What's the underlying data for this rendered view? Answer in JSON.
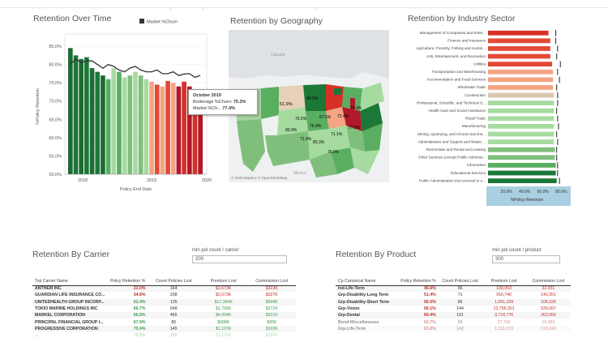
{
  "panels": {
    "retention_over_time": "Retention Over Time",
    "retention_by_geography": "Retention by Geography",
    "retention_by_industry": "Retention by Industry Sector",
    "retention_by_carrier": "Retention By Carrier",
    "retention_by_product": "Retention By Product"
  },
  "colors": {
    "dark_green": "#1e6b34",
    "green": "#58a860",
    "light_green": "#a4d29a",
    "salmon": "#f4a582",
    "red": "#e34a33",
    "dark_red": "#b2182b",
    "tan": "#d8c8b0",
    "axis_blue": "#a9cfe0"
  },
  "chart_data": [
    {
      "type": "bar",
      "title": "Retention Over Time",
      "legend": "Market %Churn",
      "legend_position": "top-right",
      "ylabel": "%Policy Retention",
      "xlabel": "Policy End Date",
      "ylim": [
        50,
        87
      ],
      "y_ticks": [
        "85.0%",
        "80.0%",
        "75.0%",
        "70.0%",
        "65.0%",
        "60.0%",
        "55.0%",
        "50.0%"
      ],
      "x_ticks": [
        "2018",
        "2019",
        "2020"
      ],
      "values": [
        84.5,
        82.5,
        81.5,
        82,
        79,
        78,
        77,
        76,
        79,
        78,
        76.5,
        77,
        78,
        77,
        76,
        75.3,
        74.5,
        74,
        75.5,
        75,
        74,
        75.3,
        74,
        72,
        73
      ],
      "market_churn": [
        80,
        81.5,
        80.5,
        81,
        81,
        80,
        79,
        80,
        79.5,
        78.5,
        78,
        79,
        79.5,
        78.5,
        78,
        78,
        78.5,
        77.5,
        77.5,
        78,
        77,
        77.4,
        77.5,
        76.5,
        77
      ],
      "tooltip": {
        "date": "October 2019",
        "line1_label": "Brokerage %Churn:",
        "line1_value": "75.3%",
        "line2_label": "Market %Ch...",
        "line2_value": "77.4%"
      }
    },
    {
      "type": "bar",
      "title": "Retention by Industry Sector",
      "xlabel": "%Policy Retention",
      "x_ticks": [
        "20.0%",
        "40.0%",
        "60.0%",
        "80.0%"
      ],
      "categories": [
        "Management of Companies and Enter...",
        "Finance and Insurance",
        "Agriculture, Forestry, Fishing and Huntin...",
        "Arts, Entertainment, and Recreation",
        "Utilities",
        "Transportation and Warehousing",
        "Accommodation and Food Services",
        "Wholesale Trade",
        "Construction",
        "Professional, Scientific, and Technical S...",
        "Health Care and Social Assistance",
        "Retail Trade",
        "Manufacturing",
        "Mining, Quarrying, and Oil and Gas Ext...",
        "Administrative and Support and Waste ...",
        "Real Estate and Rental and Leasing",
        "Other Services (except Public Administ...",
        "Information",
        "Educational Services",
        "Public Administration (not covered in e..."
      ],
      "values": [
        66,
        68,
        68,
        68,
        70,
        71,
        71,
        71,
        72,
        72,
        72,
        72,
        72,
        72,
        72,
        73,
        73,
        74,
        74,
        75
      ],
      "reference": [
        74,
        74,
        76,
        75,
        79,
        76,
        78,
        75,
        76,
        76,
        75,
        76,
        77,
        75,
        76,
        75,
        75,
        76,
        76,
        78
      ]
    }
  ],
  "map": {
    "attribution": "© 2020 Mapbox © OpenStreetMap",
    "labels": [
      "Canada",
      "Mexico"
    ],
    "state_values": [
      "71.9%",
      "75.3%",
      "61.9%",
      "80.5%",
      "67.5%",
      "76.5%",
      "76.4%",
      "72.4%",
      "80.9%",
      "71.1%",
      "80.3%",
      "75.9%",
      "77.8%"
    ]
  },
  "carrier": {
    "input_label": "min pol count / carrier",
    "input_value": "200",
    "columns": [
      "Top Carrier Name",
      "Policy Retention %",
      "Count Policies Lost",
      "Premium Lost",
      "Commission Lost"
    ],
    "rows": [
      {
        "name": "ANTHEM INC",
        "pct": "23.0%",
        "count": "164",
        "premium": "$3,673K",
        "commission": "$323K",
        "color": "red"
      },
      {
        "name": "GUARDIAN LIFE INSURANCE CO...",
        "pct": "34.8%",
        "count": "208",
        "premium": "$3,673K",
        "commission": "$327K",
        "color": "red"
      },
      {
        "name": "UNITEDHEALTH GROUP INCORP...",
        "pct": "63.4%",
        "count": "135",
        "premium": "$17,364K",
        "commission": "$694K",
        "color": "green"
      },
      {
        "name": "TOKIO MARINE HOLDINGS INC",
        "pct": "66.7%",
        "count": "548",
        "premium": "$1,765K",
        "commission": "$271K",
        "color": "green"
      },
      {
        "name": "MARKEL CORPORATION",
        "pct": "66.8%",
        "count": "465",
        "premium": "$4,094K",
        "commission": "$621K",
        "color": "green"
      },
      {
        "name": "PRINCIPAL FINANCIAL GROUP I...",
        "pct": "67.9%",
        "count": "86",
        "premium": "$688K",
        "commission": "$95K",
        "color": "green"
      },
      {
        "name": "PROGRESSIVE CORPORATION",
        "pct": "70.4%",
        "count": "145",
        "premium": "$1,107K",
        "commission": "$102K",
        "color": "green"
      },
      {
        "name": "...",
        "pct": "70.5%",
        "count": "150",
        "premium": "$1,120K",
        "commission": "$188K",
        "color": "green"
      }
    ]
  },
  "product": {
    "input_label": "min pol count / product",
    "input_value": "300",
    "columns": [
      "Cp Canonical Name",
      "Policy Retention %",
      "Count Policies Lost",
      "Premium Lost",
      "Commission Lost"
    ],
    "rows": [
      {
        "name": "Ind-Life-Term",
        "pct": "45.6%",
        "count": "56",
        "premium": "100,053",
        "commission": "32,031",
        "color": "red"
      },
      {
        "name": "Grp-Disability-Long Term",
        "pct": "51.4%",
        "count": "71",
        "premium": "916,740",
        "commission": "140,351",
        "color": "red"
      },
      {
        "name": "Grp-Disability-Short Term",
        "pct": "56.0%",
        "count": "86",
        "premium": "1,051,109",
        "commission": "108,326",
        "color": "red"
      },
      {
        "name": "Grp-Vision",
        "pct": "56.1%",
        "count": "144",
        "premium": "12,756,301",
        "commission": "539,667",
        "color": "red"
      },
      {
        "name": "Grp-Dental",
        "pct": "60.4%",
        "count": "191",
        "premium": "3,716,776",
        "commission": "263,959",
        "color": "red"
      },
      {
        "name": "Bond-Miscellaneous",
        "pct": "62.7%",
        "count": "59",
        "premium": "37,793",
        "commission": "10,452",
        "color": "red"
      },
      {
        "name": "Grp-Life-Term",
        "pct": "63.0%",
        "count": "142",
        "premium": "1,611,073",
        "commission": "119,240",
        "color": "red"
      }
    ]
  }
}
